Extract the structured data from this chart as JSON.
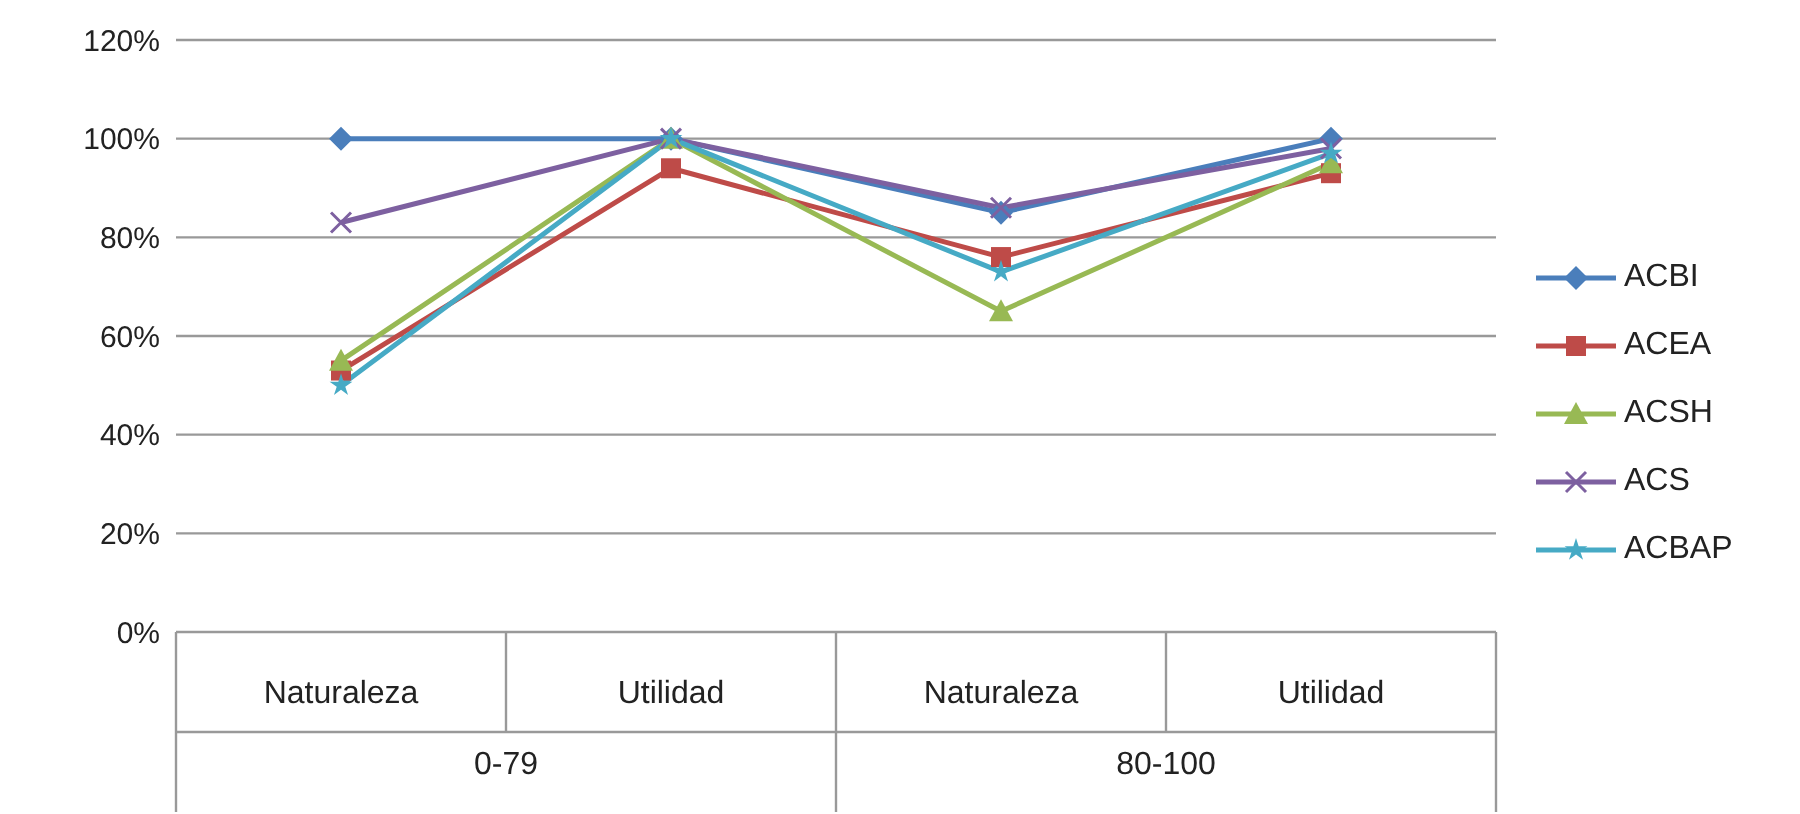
{
  "chart_data": {
    "type": "line",
    "categories": [
      "Naturaleza",
      "Utilidad",
      "Naturaleza",
      "Utilidad"
    ],
    "series": [
      {
        "name": "ACBI",
        "color": "#4a7ebb",
        "marker": "diamond",
        "values": [
          100,
          100,
          85,
          100
        ]
      },
      {
        "name": "ACEA",
        "color": "#be4b48",
        "marker": "square",
        "values": [
          53,
          94,
          76,
          93
        ]
      },
      {
        "name": "ACSH",
        "color": "#98b954",
        "marker": "triangle",
        "values": [
          55,
          100,
          65,
          95
        ]
      },
      {
        "name": "ACS",
        "color": "#7d60a0",
        "marker": "cross",
        "values": [
          83,
          100,
          86,
          98
        ]
      },
      {
        "name": "ACBAP",
        "color": "#46aac5",
        "marker": "star",
        "values": [
          50,
          100,
          73,
          97
        ]
      }
    ],
    "ylim": [
      0,
      120
    ],
    "yticks": [
      {
        "value": 0,
        "label": "0%"
      },
      {
        "value": 20,
        "label": "20%"
      },
      {
        "value": 40,
        "label": "40%"
      },
      {
        "value": 60,
        "label": "60%"
      },
      {
        "value": 80,
        "label": "80%"
      },
      {
        "value": 100,
        "label": "100%"
      },
      {
        "value": 120,
        "label": "120%"
      }
    ],
    "grid": "y",
    "legend": "right",
    "annotations": [
      "0-79",
      "80-100"
    ]
  }
}
